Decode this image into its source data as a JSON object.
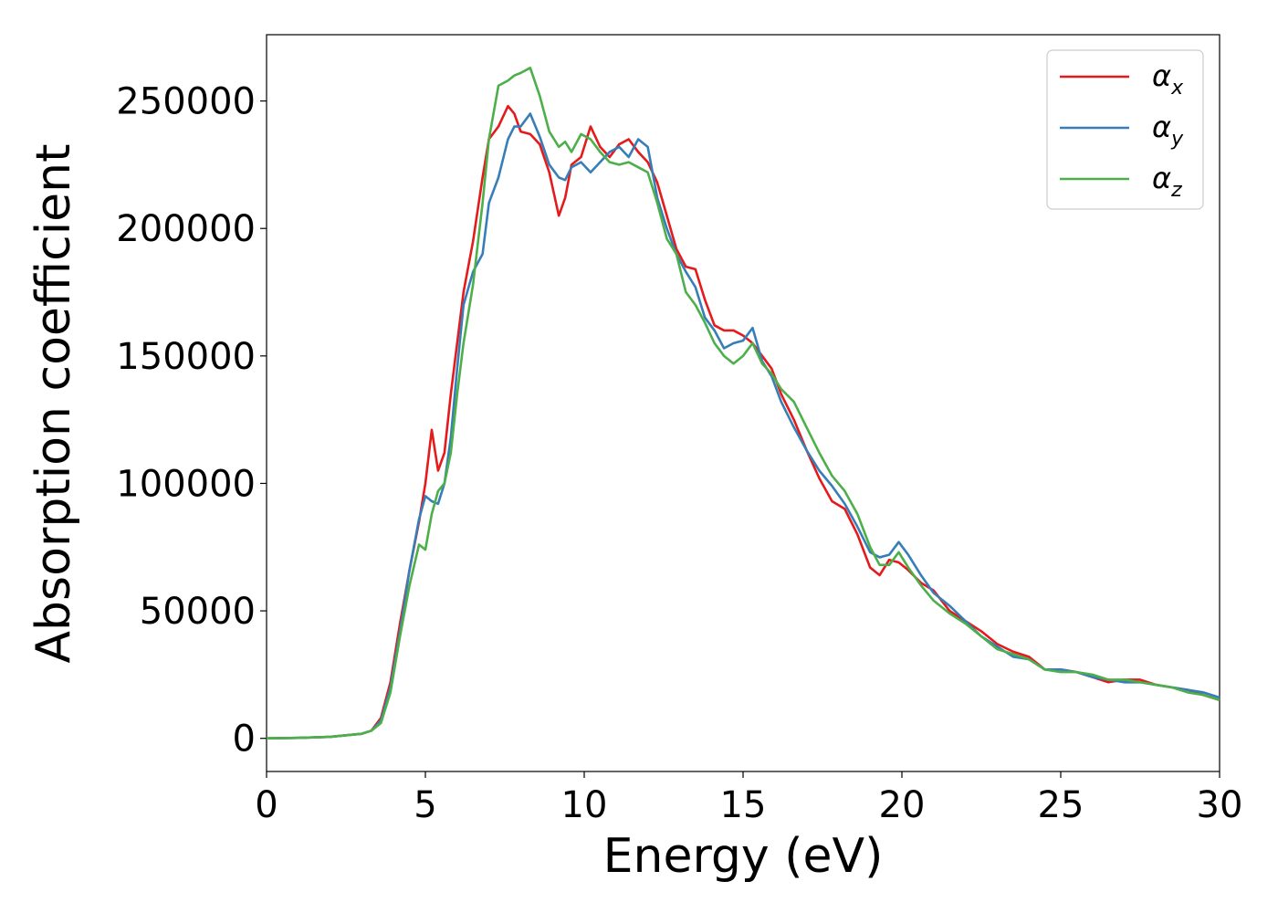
{
  "chart_data": {
    "type": "line",
    "title": "",
    "xlabel": "Energy (eV)",
    "ylabel": "Absorption coefficient",
    "xlim": [
      0,
      30
    ],
    "ylim": [
      -13000,
      276000
    ],
    "xticks": [
      0,
      5,
      10,
      15,
      20,
      25,
      30
    ],
    "xtick_labels": [
      "0",
      "5",
      "10",
      "15",
      "20",
      "25",
      "30"
    ],
    "yticks": [
      0,
      50000,
      100000,
      150000,
      200000,
      250000
    ],
    "ytick_labels": [
      "0",
      "50000",
      "100000",
      "150000",
      "200000",
      "250000"
    ],
    "grid": false,
    "legend_position": "top-right",
    "x": [
      0,
      1,
      2,
      3,
      3.3,
      3.6,
      3.9,
      4.2,
      4.5,
      4.8,
      5.0,
      5.2,
      5.4,
      5.6,
      5.8,
      6.0,
      6.2,
      6.5,
      6.8,
      7.0,
      7.3,
      7.6,
      7.8,
      8.0,
      8.3,
      8.6,
      8.9,
      9.2,
      9.4,
      9.6,
      9.9,
      10.2,
      10.5,
      10.8,
      11.1,
      11.4,
      11.7,
      12.0,
      12.3,
      12.6,
      12.9,
      13.2,
      13.5,
      13.8,
      14.1,
      14.4,
      14.7,
      15.0,
      15.3,
      15.6,
      15.9,
      16.2,
      16.6,
      17.0,
      17.4,
      17.8,
      18.2,
      18.6,
      19.0,
      19.3,
      19.6,
      19.9,
      20.2,
      20.6,
      21.0,
      21.5,
      22.0,
      22.5,
      23.0,
      23.5,
      24.0,
      24.5,
      25.0,
      25.5,
      26.0,
      26.5,
      27.0,
      27.5,
      28.0,
      28.5,
      29.0,
      29.5,
      30.0
    ],
    "series": [
      {
        "name": "α",
        "subscript": "x",
        "color": "#e41a1c",
        "values": [
          0,
          200,
          600,
          1800,
          3000,
          8000,
          22000,
          45000,
          66000,
          85000,
          100000,
          121000,
          105000,
          112000,
          135000,
          155000,
          175000,
          195000,
          220000,
          235000,
          240000,
          248000,
          245000,
          238000,
          237000,
          233000,
          222000,
          205000,
          212000,
          225000,
          228000,
          240000,
          232000,
          228000,
          233000,
          235000,
          230000,
          226000,
          218000,
          205000,
          192000,
          185000,
          184000,
          172000,
          162000,
          160000,
          160000,
          158000,
          155000,
          150000,
          145000,
          135000,
          125000,
          113000,
          102000,
          93000,
          90000,
          80000,
          67000,
          64000,
          70000,
          69000,
          66000,
          61000,
          58000,
          50000,
          46000,
          42000,
          37000,
          34000,
          32000,
          27000,
          27000,
          26000,
          24000,
          22000,
          23000,
          23000,
          21000,
          20000,
          19000,
          17000,
          15000
        ]
      },
      {
        "name": "α",
        "subscript": "y",
        "color": "#377eb8",
        "values": [
          0,
          200,
          600,
          1800,
          3000,
          7000,
          20000,
          42000,
          66000,
          86000,
          95000,
          93000,
          92000,
          100000,
          118000,
          145000,
          170000,
          183000,
          190000,
          210000,
          220000,
          235000,
          240000,
          240000,
          245000,
          236000,
          225000,
          220000,
          219000,
          224000,
          226000,
          222000,
          226000,
          230000,
          232000,
          228000,
          235000,
          232000,
          212000,
          200000,
          190000,
          183000,
          177000,
          165000,
          160000,
          153000,
          155000,
          156000,
          161000,
          148000,
          142000,
          132000,
          122000,
          113000,
          105000,
          99000,
          92000,
          83000,
          73000,
          71000,
          72000,
          77000,
          72000,
          64000,
          57000,
          52000,
          46000,
          40000,
          36000,
          32000,
          31000,
          27000,
          27000,
          26000,
          24000,
          23000,
          22000,
          22000,
          21000,
          20000,
          19000,
          18000,
          16000
        ]
      },
      {
        "name": "α",
        "subscript": "z",
        "color": "#4daf4a",
        "values": [
          0,
          200,
          600,
          1800,
          3000,
          6000,
          18000,
          40000,
          60000,
          76000,
          74000,
          88000,
          97000,
          100000,
          112000,
          135000,
          155000,
          178000,
          210000,
          235000,
          256000,
          258000,
          260000,
          261000,
          263000,
          252000,
          238000,
          232000,
          234000,
          230000,
          237000,
          235000,
          230000,
          226000,
          225000,
          226000,
          224000,
          222000,
          210000,
          196000,
          190000,
          175000,
          170000,
          163000,
          155000,
          150000,
          147000,
          150000,
          155000,
          147000,
          143000,
          137000,
          132000,
          122000,
          112000,
          103000,
          97000,
          88000,
          75000,
          68000,
          68000,
          73000,
          67000,
          60000,
          54000,
          49000,
          45000,
          40000,
          35000,
          33000,
          31000,
          27000,
          26000,
          26000,
          25000,
          23000,
          23000,
          22000,
          21000,
          20000,
          18000,
          17000,
          15000
        ]
      }
    ]
  }
}
